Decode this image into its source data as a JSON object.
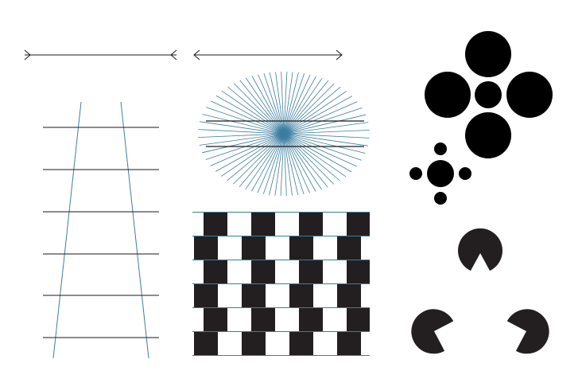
{
  "colors": {
    "background": "#ffffff",
    "black_line": "#1a1a1a",
    "blue_line": "#3b7ea0",
    "fill_dark": "#231f20",
    "fill_black": "#000000"
  },
  "figures": {
    "muller_lyer": {
      "name": "muller-lyer-illusion",
      "arrow_styles": [
        "inward",
        "outward"
      ]
    },
    "ponzo": {
      "name": "ponzo-ladder-illusion",
      "rungs": 6
    },
    "hering": {
      "name": "hering-illusion",
      "parallel_lines": 2,
      "rays": 34
    },
    "cafe_wall": {
      "name": "cafe-wall-illusion",
      "rows": 6,
      "row_offsets_in_tile_fraction": [
        0.0,
        0.5,
        0.0,
        0.5,
        0.0,
        0.5
      ]
    },
    "ebbinghaus": {
      "name": "ebbinghaus-illusion",
      "large_surround": 4,
      "small_surround": 4
    },
    "kanizsa": {
      "name": "kanizsa-triangle-illusion",
      "pacmen": 3
    }
  }
}
